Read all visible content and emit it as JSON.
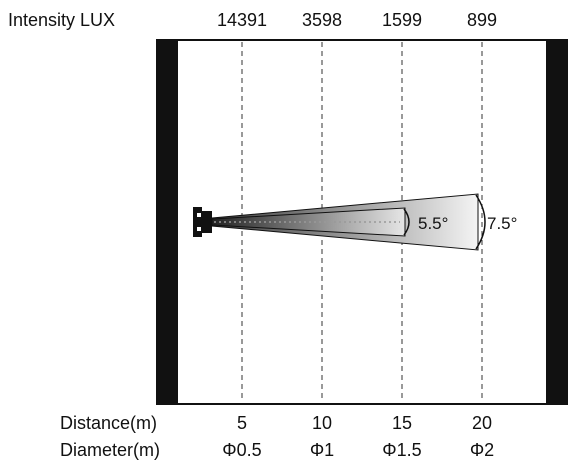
{
  "header": {
    "intensity_label": "Intensity LUX"
  },
  "columns": [
    {
      "intensity": "14391",
      "distance": "5",
      "diameter": "Φ0.5"
    },
    {
      "intensity": "3598",
      "distance": "10",
      "diameter": "Φ1"
    },
    {
      "intensity": "1599",
      "distance": "15",
      "diameter": "Φ1.5"
    },
    {
      "intensity": "899",
      "distance": "20",
      "diameter": "Φ2"
    }
  ],
  "footer": {
    "distance_label": "Distance(m)",
    "diameter_label": "Diameter(m)"
  },
  "beam": {
    "inner_angle": "5.5°",
    "outer_angle": "7.5°"
  },
  "colors": {
    "ink": "#111111",
    "beam_dark": "#3a3a3a",
    "beam_light": "#f2f2f2",
    "dash": "#333333"
  }
}
